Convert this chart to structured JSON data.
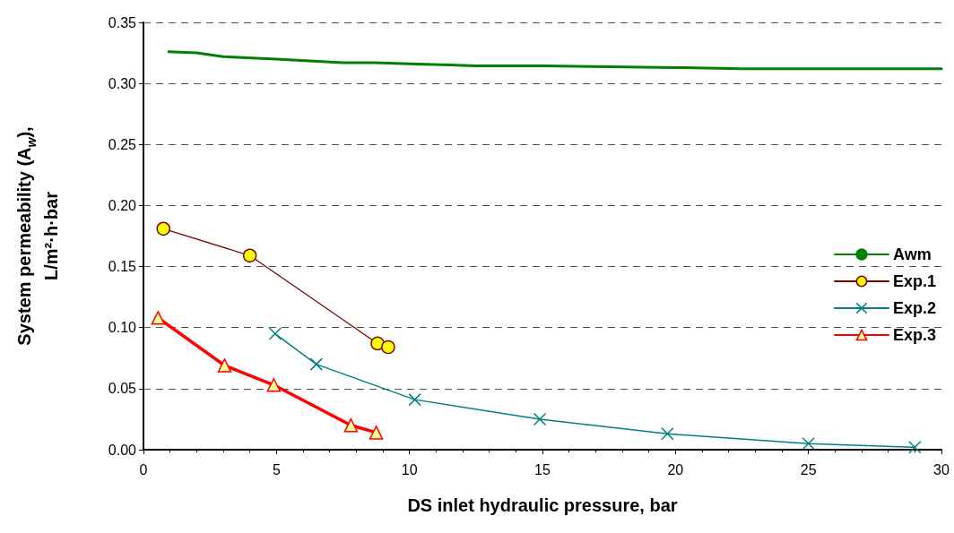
{
  "chart_data": {
    "type": "line",
    "xlabel": "DS inlet hydraulic pressure, bar",
    "ylabel": "System permeability (A$_{w}$),\nL/m²·h·bar",
    "xlim": [
      0,
      30
    ],
    "xticks": [
      0,
      5,
      10,
      15,
      20,
      25,
      30
    ],
    "ylim": [
      0,
      0.35
    ],
    "yticks": [
      {
        "value": 0,
        "label": "0.00"
      },
      0.05,
      {
        "value": 0.1,
        "label": "0.10"
      },
      0.15,
      {
        "value": 0.2,
        "label": "0.20"
      },
      0.25,
      {
        "value": 0.3,
        "label": "0.30"
      },
      0.35
    ],
    "grid": "y",
    "legend": "right",
    "series": [
      {
        "name": "Awm",
        "color": "#008000",
        "marker": "none",
        "x": [
          0.95,
          2,
          3,
          5,
          7.5,
          8.7,
          10,
          12.5,
          15,
          20,
          22.5,
          30
        ],
        "values": [
          0.326,
          0.325,
          0.322,
          0.32,
          0.317,
          0.317,
          0.316,
          0.3145,
          0.3145,
          0.313,
          0.312,
          0.312
        ]
      },
      {
        "name": "Exp.1",
        "color": "#800000",
        "marker": "circle",
        "colors": [
          "#ffff00",
          "#ffff00",
          "#ffff00",
          "#ffff00"
        ],
        "x": [
          0.75,
          4,
          8.8,
          9.2
        ],
        "values": [
          0.181,
          0.159,
          0.087,
          0.084
        ]
      },
      {
        "name": "Exp.2",
        "color": "#008080",
        "marker": "cross",
        "x": [
          4.95,
          6.5,
          10.2,
          14.9,
          19.7,
          25,
          29
        ],
        "values": [
          0.095,
          0.07,
          0.041,
          0.025,
          0.013,
          0.005,
          0.002
        ]
      },
      {
        "name": "Exp.3",
        "color": "#ff0000",
        "marker": "triangle",
        "colors": [
          "#ffff99",
          "#ffff99",
          "#ffff99",
          "#ffff99",
          "#ffff99"
        ],
        "x": [
          0.55,
          3.05,
          4.9,
          7.8,
          8.75
        ],
        "values": [
          0.108,
          0.069,
          0.053,
          0.02,
          0.014
        ]
      }
    ]
  }
}
